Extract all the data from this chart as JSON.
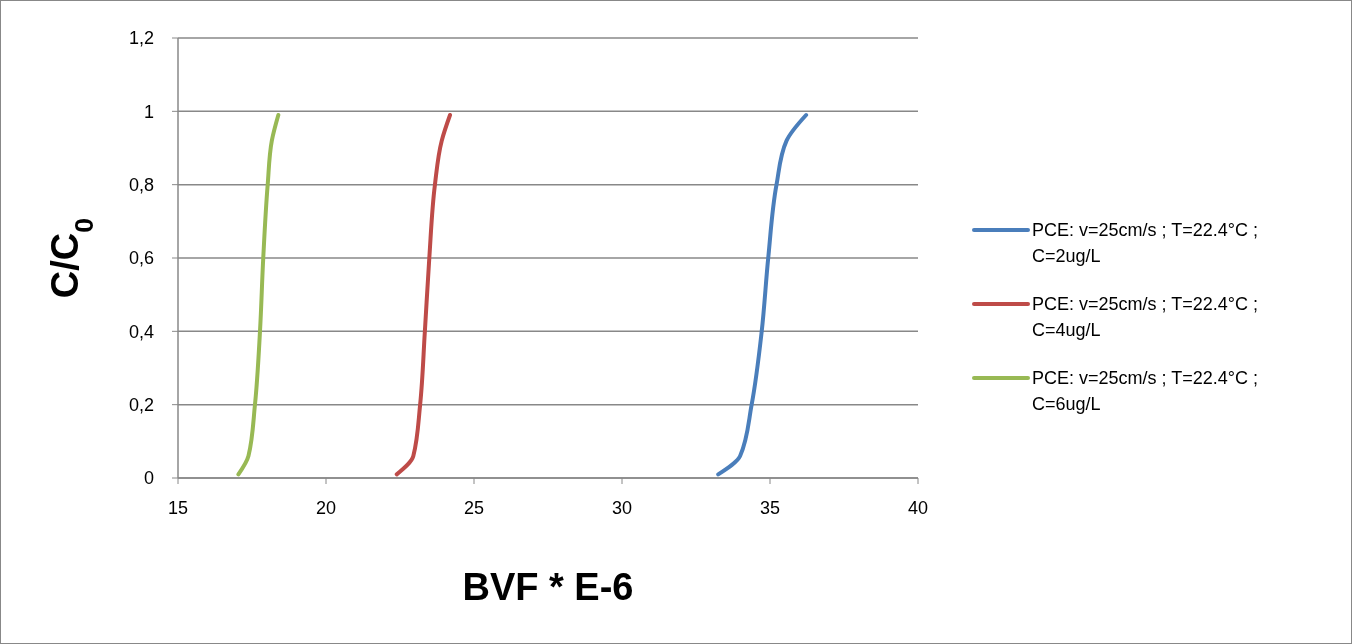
{
  "chart_data": {
    "type": "line",
    "xlabel": "BVF * E-6",
    "ylabel": "C/C$_{0}$",
    "xlim": [
      15,
      40
    ],
    "xticks": [
      15,
      20,
      25,
      30,
      35,
      40
    ],
    "ylim": [
      0,
      1.2
    ],
    "yticks": [
      0,
      {
        "value": 0.2,
        "label": "0,2"
      },
      {
        "value": 0.4,
        "label": "0,4"
      },
      {
        "value": 0.6,
        "label": "0,6"
      },
      {
        "value": 0.8,
        "label": "0,8"
      },
      1,
      {
        "value": 1.2,
        "label": "1,2"
      }
    ],
    "grid": "y",
    "legend": "right",
    "marker": "none",
    "line_style": "solid",
    "series": [
      {
        "name": "PCE: v=25cm/s ; T=22.4°C ; C=2ug/L",
        "color": "#4a7ebb",
        "x": [
          33.25,
          33.99,
          34.38,
          34.72,
          34.94,
          35.22,
          35.56,
          36.22
        ],
        "values": [
          0.01,
          0.06,
          0.2,
          0.4,
          0.6,
          0.8,
          0.92,
          0.99
        ]
      },
      {
        "name": "PCE: v=25cm/s ; T=22.4°C ; C=4ug/L",
        "color": "#be4b48",
        "x": [
          22.39,
          22.95,
          23.18,
          23.34,
          23.49,
          23.68,
          23.91,
          24.19
        ],
        "values": [
          0.01,
          0.06,
          0.2,
          0.4,
          0.6,
          0.8,
          0.92,
          0.99
        ]
      },
      {
        "name": "PCE: v=25cm/s ; T=22.4°C ; C=6ug/L",
        "color": "#98b954",
        "x": [
          17.04,
          17.38,
          17.6,
          17.77,
          17.88,
          18.03,
          18.17,
          18.39
        ],
        "values": [
          0.01,
          0.06,
          0.2,
          0.4,
          0.6,
          0.8,
          0.92,
          0.99
        ]
      }
    ]
  }
}
